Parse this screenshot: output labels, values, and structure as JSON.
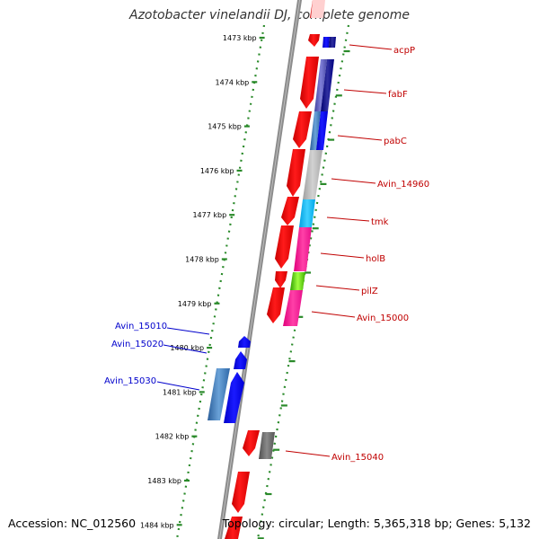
{
  "title": "Azotobacter vinelandii DJ, complete genome",
  "footer": {
    "accession": "Accession: NC_012560",
    "topology": "Topology: circular; Length: 5,365,318 bp; Genes: 5,132"
  },
  "ticks": [
    {
      "kb": 1473,
      "label": "1473 kbp"
    },
    {
      "kb": 1474,
      "label": "1474 kbp"
    },
    {
      "kb": 1475,
      "label": "1475 kbp"
    },
    {
      "kb": 1476,
      "label": "1476 kbp"
    },
    {
      "kb": 1477,
      "label": "1477 kbp"
    },
    {
      "kb": 1478,
      "label": "1478 kbp"
    },
    {
      "kb": 1479,
      "label": "1479 kbp"
    },
    {
      "kb": 1480,
      "label": "1480 kbp"
    },
    {
      "kb": 1481,
      "label": "1481 kbp"
    },
    {
      "kb": 1482,
      "label": "1482 kbp"
    },
    {
      "kb": 1483,
      "label": "1483 kbp"
    },
    {
      "kb": 1484,
      "label": "1484 kbp"
    }
  ],
  "genes": [
    {
      "name": "acpP",
      "color": "#c00000"
    },
    {
      "name": "fabF",
      "color": "#c00000"
    },
    {
      "name": "pabC",
      "color": "#c00000"
    },
    {
      "name": "Avin_14960",
      "color": "#c00000"
    },
    {
      "name": "tmk",
      "color": "#c00000"
    },
    {
      "name": "holB",
      "color": "#c00000"
    },
    {
      "name": "pilZ",
      "color": "#c00000"
    },
    {
      "name": "Avin_15000",
      "color": "#c00000"
    },
    {
      "name": "Avin_15010",
      "color": "#0000cc"
    },
    {
      "name": "Avin_15020",
      "color": "#0000cc"
    },
    {
      "name": "Avin_15030",
      "color": "#0000cc"
    },
    {
      "name": "Avin_15040",
      "color": "#c00000"
    }
  ],
  "colors": {
    "forward_strand": "#ff0000",
    "reverse_strand": "#0000ff",
    "backbone": "#8c8c8c",
    "tick_dots": "#2a8a2a"
  }
}
